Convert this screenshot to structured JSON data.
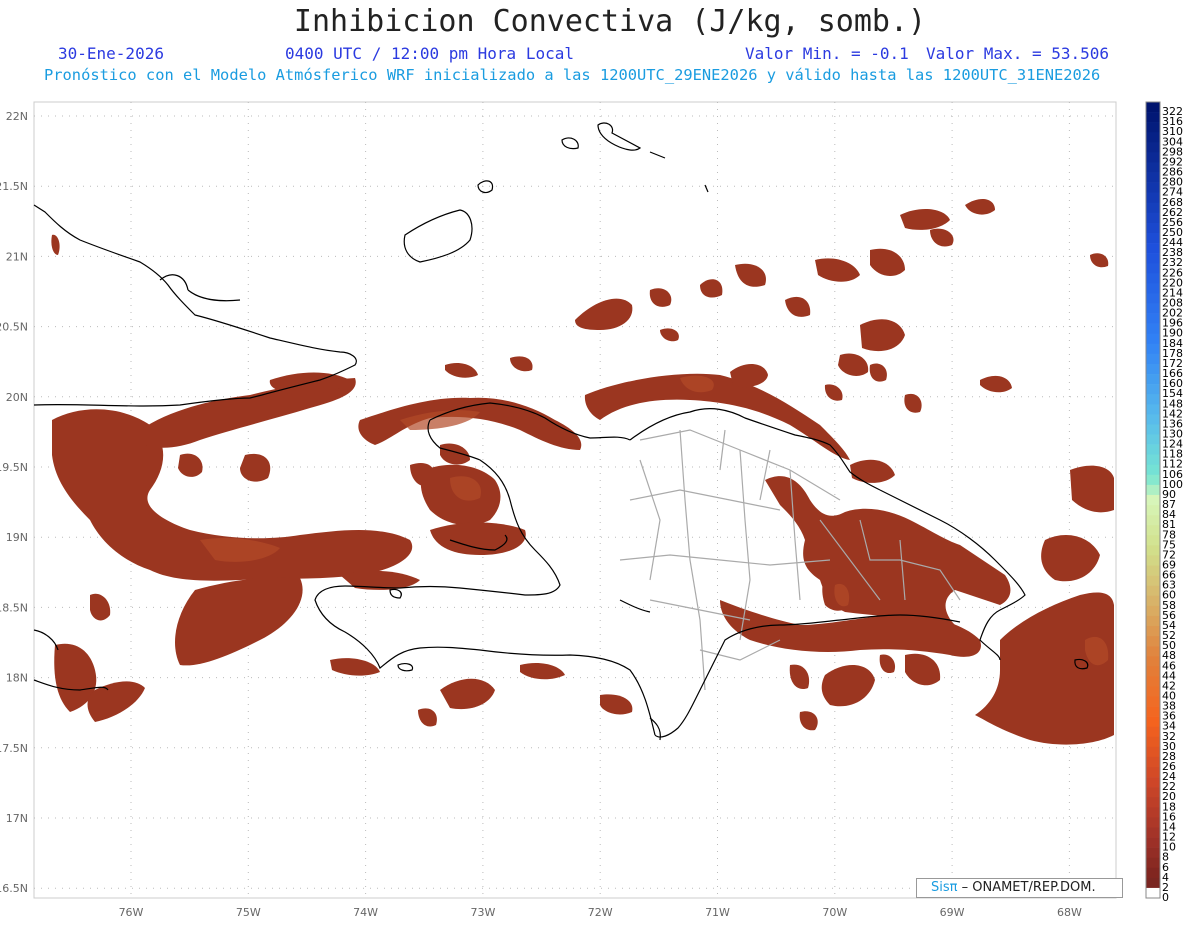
{
  "header": {
    "title": "Inhibicion Convectiva (J/kg, somb.)",
    "date": "30-Ene-2026",
    "time": "0400 UTC / 12:00 pm Hora Local",
    "min_label": "Valor Min. = -0.1",
    "max_label": "Valor Max. = 53.506",
    "subtitle": "Pronóstico con el Modelo Atmósferico WRF inicializado a las 1200UTC_29ENE2026 y válido hasta las  1200UTC_31ENE2026"
  },
  "map": {
    "lon_ticks": [
      "76W",
      "75W",
      "74W",
      "73W",
      "72W",
      "71W",
      "70W",
      "69W",
      "68W"
    ],
    "lat_ticks": [
      "22N",
      "21.5N",
      "21N",
      "20.5N",
      "20N",
      "19.5N",
      "19N",
      "18.5N",
      "18N",
      "17.5N",
      "17N",
      "16.5N"
    ],
    "lon_values": [
      -76,
      -75,
      -74,
      -73,
      -72,
      -71,
      -70,
      -69,
      -68
    ],
    "lat_values": [
      22,
      21.5,
      21,
      20.5,
      20,
      19.5,
      19,
      18.5,
      18,
      17.5,
      17,
      16.5
    ],
    "lon_range": [
      -76.8,
      -67.4
    ],
    "lat_range": [
      16.5,
      22.1
    ],
    "colors": {
      "fill": "#9b3620",
      "fill_light": "#b54d2a",
      "coast": "#000000",
      "border": "#aaaaaa",
      "grid": "#bbbbbb"
    }
  },
  "colorbar": {
    "labels": [
      "322",
      "316",
      "310",
      "304",
      "298",
      "292",
      "286",
      "280",
      "274",
      "268",
      "262",
      "256",
      "250",
      "244",
      "238",
      "232",
      "226",
      "220",
      "214",
      "208",
      "202",
      "196",
      "190",
      "184",
      "178",
      "172",
      "166",
      "160",
      "154",
      "148",
      "142",
      "136",
      "130",
      "124",
      "118",
      "112",
      "106",
      "100",
      "90",
      "87",
      "84",
      "81",
      "78",
      "75",
      "72",
      "69",
      "66",
      "63",
      "60",
      "58",
      "56",
      "54",
      "52",
      "50",
      "48",
      "46",
      "44",
      "42",
      "40",
      "38",
      "36",
      "34",
      "32",
      "30",
      "28",
      "26",
      "24",
      "22",
      "20",
      "18",
      "16",
      "14",
      "12",
      "10",
      "8",
      "6",
      "4",
      "2",
      "0"
    ]
  },
  "credit": {
    "sis": "Sisπ",
    "org": " – ONAMET/REP.DOM."
  }
}
